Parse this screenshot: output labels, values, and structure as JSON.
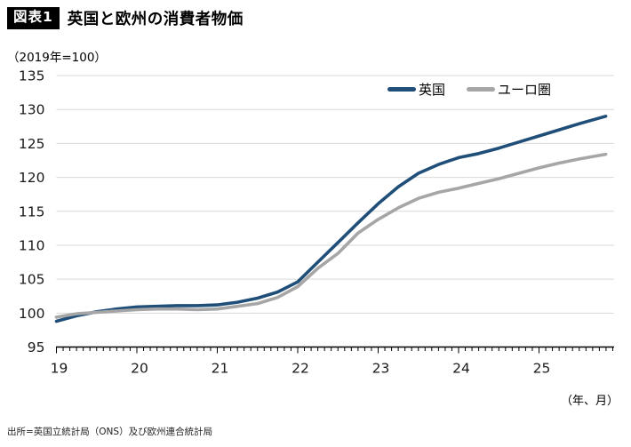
{
  "header": {
    "badge": "図表1",
    "title": "英国と欧州の消費者物価"
  },
  "axis_note": "（2019年=100）",
  "x_unit_label": "（年、月）",
  "source": "出所=英国立統計局（ONS）及び欧州連合統計局",
  "chart_data": {
    "type": "line",
    "title": "英国と欧州の消費者物価",
    "subtitle": "（2019年=100）",
    "xlabel": "（年、月）",
    "ylabel": "",
    "ylim": [
      95,
      135
    ],
    "yticks": [
      95,
      100,
      105,
      110,
      115,
      120,
      125,
      130,
      135
    ],
    "xticks_years": [
      19,
      20,
      21,
      22,
      23,
      24,
      25
    ],
    "x_axis_months_span": 84,
    "tick_interval_months": 1,
    "grid": "horizontal",
    "legend_position": "top-right",
    "gridline_color": "#d9d9d9",
    "axis_color": "#000000",
    "x_years": [
      19.0,
      19.25,
      19.5,
      19.75,
      20.0,
      20.25,
      20.5,
      20.75,
      21.0,
      21.25,
      21.5,
      21.75,
      22.0,
      22.25,
      22.5,
      22.75,
      23.0,
      23.25,
      23.5,
      23.75,
      24.0,
      24.25,
      24.5,
      24.75,
      25.0,
      25.25,
      25.5,
      25.83
    ],
    "series": [
      {
        "name": "英国",
        "color": "#1f4e79",
        "values": [
          98.8,
          99.6,
          100.2,
          100.6,
          100.9,
          101.0,
          101.1,
          101.1,
          101.2,
          101.6,
          102.2,
          103.1,
          104.6,
          107.5,
          110.4,
          113.3,
          116.1,
          118.6,
          120.6,
          121.9,
          122.9,
          123.5,
          124.3,
          125.2,
          126.1,
          127.0,
          127.9,
          129.0
        ]
      },
      {
        "name": "ユーロ圏",
        "color": "#a6a6a6",
        "values": [
          99.4,
          99.9,
          100.1,
          100.3,
          100.5,
          100.6,
          100.6,
          100.5,
          100.6,
          101.0,
          101.4,
          102.3,
          103.9,
          106.6,
          108.8,
          111.8,
          113.8,
          115.5,
          116.9,
          117.8,
          118.4,
          119.1,
          119.8,
          120.6,
          121.4,
          122.1,
          122.7,
          123.4
        ]
      }
    ]
  }
}
